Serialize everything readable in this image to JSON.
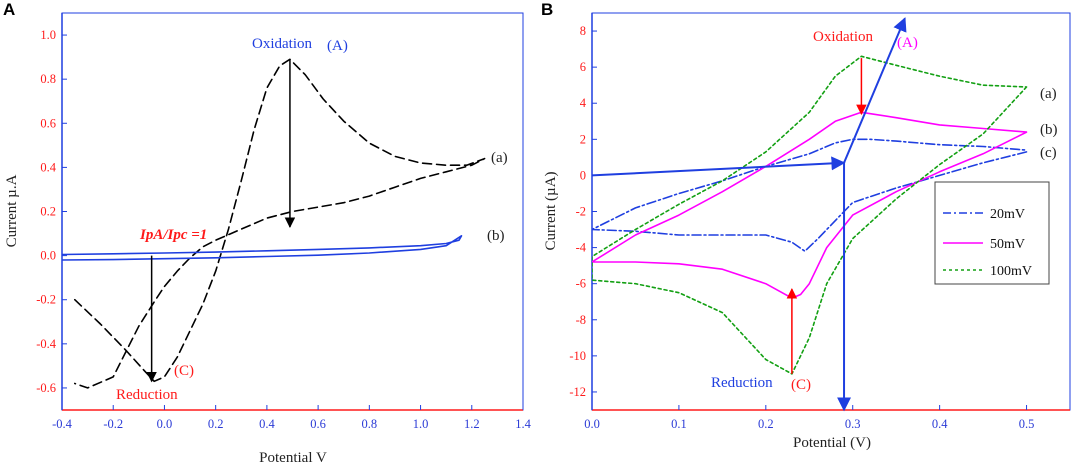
{
  "panels": {
    "a": {
      "letter": "A",
      "xlabel": "Potential V",
      "ylabel": "Current µ.A",
      "annotations": {
        "oxidation": "Oxidation",
        "oxidation_tag": "(A)",
        "reduction": "Reduction",
        "reduction_tag": "(C)",
        "ratio": "IpA/Ipc =1",
        "curve_a": "(a)",
        "curve_b": "(b)"
      }
    },
    "b": {
      "letter": "B",
      "xlabel": "Potential (V)",
      "ylabel": "Current (µA)",
      "annotations": {
        "oxidation": "Oxidation",
        "oxidation_tag": "(A)",
        "reduction": "Reduction",
        "reduction_tag": "(C)",
        "curve_a": "(a)",
        "curve_b": "(b)",
        "curve_c": "(c)"
      },
      "legend": [
        "20mV",
        "50mV",
        "100mV"
      ]
    }
  },
  "colors": {
    "tick_y": "#ff1a1a",
    "tick_x": "#2b3bd6",
    "blue": "#1f3fe0",
    "magenta": "#ff00ff",
    "green": "#13a013",
    "black": "#000000",
    "red": "#ff0000"
  },
  "chart_data": [
    {
      "type": "line",
      "title": "",
      "xlabel": "Potential V",
      "ylabel": "Current µ.A",
      "xlim": [
        -0.4,
        1.4
      ],
      "ylim": [
        -0.7,
        1.1
      ],
      "xticks": [
        -0.4,
        -0.2,
        0.0,
        0.2,
        0.4,
        0.6,
        0.8,
        1.0,
        1.2,
        1.4
      ],
      "yticks": [
        -0.6,
        -0.4,
        -0.2,
        0.0,
        0.2,
        0.4,
        0.6,
        0.8,
        1.0
      ],
      "series": [
        {
          "name": "(a)",
          "style": "dashed",
          "color": "#000000",
          "x": [
            -0.35,
            -0.25,
            -0.15,
            -0.08,
            -0.04,
            0.0,
            0.05,
            0.1,
            0.15,
            0.2,
            0.25,
            0.3,
            0.35,
            0.4,
            0.45,
            0.49,
            0.55,
            0.62,
            0.7,
            0.8,
            0.9,
            1.0,
            1.1,
            1.18,
            1.25,
            1.2,
            1.1,
            1.0,
            0.9,
            0.8,
            0.7,
            0.6,
            0.5,
            0.4,
            0.3,
            0.2,
            0.15,
            0.1,
            0.05,
            0.0,
            -0.04,
            -0.1,
            -0.2,
            -0.3,
            -0.35
          ],
          "y": [
            -0.2,
            -0.31,
            -0.43,
            -0.52,
            -0.57,
            -0.55,
            -0.46,
            -0.34,
            -0.22,
            -0.07,
            0.12,
            0.34,
            0.57,
            0.76,
            0.86,
            0.89,
            0.82,
            0.71,
            0.61,
            0.51,
            0.45,
            0.42,
            0.41,
            0.41,
            0.44,
            0.41,
            0.38,
            0.35,
            0.31,
            0.27,
            0.24,
            0.22,
            0.2,
            0.17,
            0.12,
            0.07,
            0.04,
            -0.01,
            -0.07,
            -0.14,
            -0.21,
            -0.32,
            -0.55,
            -0.6,
            -0.58
          ]
        },
        {
          "name": "(b)",
          "style": "solid",
          "color": "#1f3fe0",
          "x": [
            -0.4,
            -0.2,
            0.0,
            0.2,
            0.4,
            0.6,
            0.8,
            1.0,
            1.1,
            1.16,
            1.15,
            1.1,
            1.0,
            0.8,
            0.6,
            0.4,
            0.2,
            0.0,
            -0.2,
            -0.4
          ],
          "y": [
            -0.02,
            -0.018,
            -0.014,
            -0.01,
            -0.004,
            0.002,
            0.012,
            0.028,
            0.045,
            0.09,
            0.07,
            0.055,
            0.045,
            0.035,
            0.028,
            0.022,
            0.016,
            0.012,
            0.008,
            0.005
          ]
        }
      ],
      "arrows": [
        {
          "name": "oxidation-peak-arrow",
          "from": [
            0.49,
            0.89
          ],
          "to": [
            0.49,
            0.13
          ]
        },
        {
          "name": "reduction-peak-arrow",
          "from": [
            -0.05,
            0.0
          ],
          "to": [
            -0.05,
            -0.57
          ]
        }
      ]
    },
    {
      "type": "line",
      "title": "",
      "xlabel": "Potential (V)",
      "ylabel": "Current (µA)",
      "xlim": [
        0.0,
        0.55
      ],
      "ylim": [
        -13,
        9
      ],
      "xticks": [
        0.0,
        0.1,
        0.2,
        0.3,
        0.4,
        0.5
      ],
      "yticks": [
        -12,
        -10,
        -8,
        -6,
        -4,
        -2,
        0,
        2,
        4,
        6,
        8
      ],
      "legend": {
        "position": "right",
        "entries": [
          "20mV",
          "50mV",
          "100mV"
        ]
      },
      "series": [
        {
          "name": "20mV",
          "label": "(c)",
          "style": "dash-dot",
          "color": "#1f3fe0",
          "x": [
            0.5,
            0.45,
            0.4,
            0.35,
            0.3,
            0.26,
            0.245,
            0.23,
            0.2,
            0.15,
            0.1,
            0.05,
            0.0,
            0.05,
            0.1,
            0.15,
            0.2,
            0.25,
            0.28,
            0.3,
            0.32,
            0.35,
            0.4,
            0.45,
            0.5
          ],
          "y": [
            1.3,
            0.7,
            0.0,
            -0.7,
            -1.5,
            -3.5,
            -4.2,
            -3.7,
            -3.3,
            -3.3,
            -3.3,
            -3.1,
            -3.0,
            -1.8,
            -1.0,
            -0.3,
            0.5,
            1.2,
            1.8,
            2.0,
            2.0,
            1.9,
            1.7,
            1.6,
            1.4
          ]
        },
        {
          "name": "50mV",
          "label": "(b)",
          "style": "solid",
          "color": "#ff00ff",
          "x": [
            0.5,
            0.45,
            0.4,
            0.35,
            0.3,
            0.27,
            0.25,
            0.24,
            0.23,
            0.2,
            0.15,
            0.1,
            0.05,
            0.0,
            0.05,
            0.1,
            0.15,
            0.2,
            0.25,
            0.28,
            0.31,
            0.35,
            0.4,
            0.45,
            0.5
          ],
          "y": [
            2.4,
            1.2,
            0.2,
            -0.9,
            -2.2,
            -4.0,
            -6.0,
            -6.6,
            -6.8,
            -6.0,
            -5.2,
            -4.9,
            -4.8,
            -4.8,
            -3.3,
            -2.2,
            -0.9,
            0.5,
            2.0,
            3.0,
            3.5,
            3.2,
            2.8,
            2.6,
            2.4
          ]
        },
        {
          "name": "100mV",
          "label": "(a)",
          "style": "dotted",
          "color": "#13a013",
          "x": [
            0.5,
            0.45,
            0.4,
            0.35,
            0.3,
            0.27,
            0.25,
            0.23,
            0.2,
            0.15,
            0.1,
            0.05,
            0.0,
            0.0,
            0.05,
            0.1,
            0.15,
            0.2,
            0.25,
            0.28,
            0.31,
            0.35,
            0.4,
            0.45,
            0.5
          ],
          "y": [
            4.9,
            2.3,
            0.6,
            -1.3,
            -3.5,
            -6.0,
            -9.0,
            -11.0,
            -10.2,
            -7.6,
            -6.5,
            -6.0,
            -5.8,
            -4.5,
            -3.0,
            -1.6,
            -0.3,
            1.3,
            3.5,
            5.5,
            6.6,
            6.1,
            5.5,
            5.0,
            4.9
          ]
        }
      ],
      "arrows": [
        {
          "name": "oxidation-direction-arrow",
          "from": [
            0.29,
            0.7
          ],
          "to": [
            0.36,
            8.7
          ]
        },
        {
          "name": "horizontal-baseline-arrow",
          "from": [
            0.0,
            0.0
          ],
          "to": [
            0.29,
            0.7
          ]
        },
        {
          "name": "vertical-potential-arrow",
          "from": [
            0.29,
            0.7
          ],
          "to": [
            0.29,
            -13
          ]
        },
        {
          "name": "oxidation-peak-arrow",
          "from": [
            0.31,
            6.5
          ],
          "to": [
            0.31,
            3.4
          ]
        },
        {
          "name": "reduction-peak-arrow",
          "from": [
            0.23,
            -11.0
          ],
          "to": [
            0.23,
            -6.3
          ]
        }
      ]
    }
  ]
}
